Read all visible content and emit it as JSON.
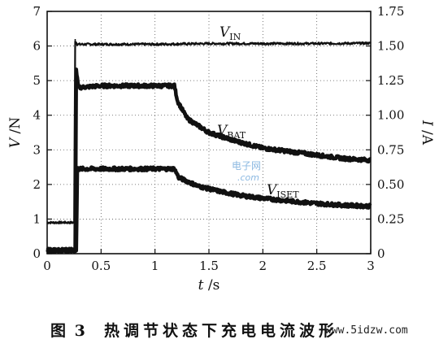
{
  "chart_data": {
    "type": "line",
    "xlabel_var": "t",
    "xlabel_unit": "/s",
    "ylabel_left_var": "V",
    "ylabel_left_unit": "/N",
    "ylabel_right_var": "I",
    "ylabel_right_unit": "/A",
    "xlim": [
      0,
      3
    ],
    "ylim_left": [
      0,
      7
    ],
    "ylim_right": [
      0,
      1.75
    ],
    "x_ticks": [
      "0",
      "0.5",
      "1",
      "1.5",
      "2",
      "2.5",
      "3"
    ],
    "y_left_ticks": [
      "0",
      "1",
      "2",
      "3",
      "4",
      "5",
      "6",
      "7"
    ],
    "y_right_ticks": [
      "0",
      "0.25",
      "0.50",
      "0.75",
      "1.00",
      "1.25",
      "1.50",
      "1.75"
    ],
    "grid": true,
    "series": [
      {
        "name": "V_IN",
        "label_main": "V",
        "label_sub": "IN",
        "axis": "left",
        "x": [
          0,
          0.25,
          0.26,
          0.28,
          0.5,
          1.0,
          1.5,
          2.0,
          2.5,
          3.0
        ],
        "y": [
          0.9,
          0.9,
          6.15,
          6.05,
          6.05,
          6.05,
          6.07,
          6.07,
          6.07,
          6.08
        ]
      },
      {
        "name": "V_BAT",
        "label_main": "V",
        "label_sub": "BAT",
        "axis": "left",
        "x": [
          0,
          0.26,
          0.27,
          0.29,
          0.5,
          1.0,
          1.18,
          1.21,
          1.3,
          1.5,
          1.75,
          2.0,
          2.25,
          2.5,
          2.75,
          3.0
        ],
        "y": [
          0.1,
          0.1,
          5.3,
          4.8,
          4.85,
          4.85,
          4.85,
          4.4,
          3.9,
          3.5,
          3.25,
          3.05,
          2.95,
          2.85,
          2.75,
          2.7
        ]
      },
      {
        "name": "V_ISET",
        "label_main": "V",
        "label_sub": "ISET",
        "axis": "left",
        "x": [
          0,
          0.27,
          0.28,
          0.5,
          1.0,
          1.18,
          1.22,
          1.4,
          1.6,
          1.8,
          2.0,
          2.25,
          2.5,
          2.75,
          3.0
        ],
        "y": [
          0.1,
          0.1,
          2.45,
          2.45,
          2.45,
          2.45,
          2.2,
          1.95,
          1.8,
          1.68,
          1.6,
          1.52,
          1.45,
          1.4,
          1.37
        ]
      }
    ]
  },
  "watermark": {
    "line1": "电子网",
    "line2": ".com"
  },
  "caption": {
    "label": "图 3",
    "text": "热调节状态下充电电流波形",
    "site": "www.5idzw.com"
  }
}
